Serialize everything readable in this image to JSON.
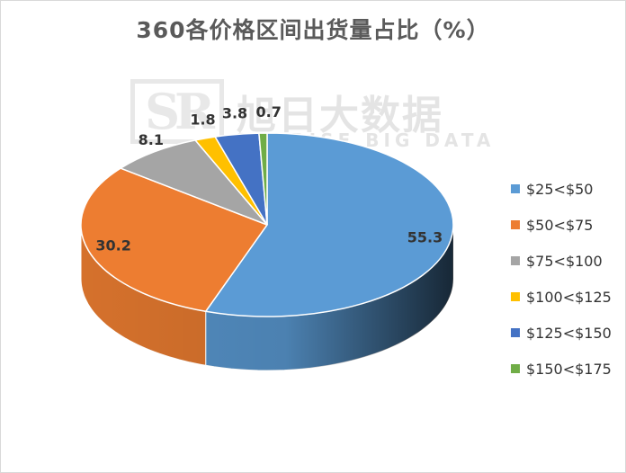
{
  "chart_data": {
    "type": "pie",
    "title": "360各价格区间出货量占比（%）",
    "categories": [
      "$25<$50",
      "$50<$75",
      "$75<$100",
      "$100<$125",
      "$125<$150",
      "$150<$175"
    ],
    "values": [
      55.3,
      30.2,
      8.1,
      1.8,
      3.8,
      0.7
    ],
    "colors": [
      "#5b9bd5",
      "#ed7d31",
      "#a5a5a5",
      "#ffc000",
      "#4472c4",
      "#70ad47"
    ],
    "legend_position": "right",
    "style": "3d"
  },
  "watermark": {
    "logo_text": "SR",
    "cn_text": "旭日大数据",
    "en_text": "SUNRISE BIG DATA"
  }
}
